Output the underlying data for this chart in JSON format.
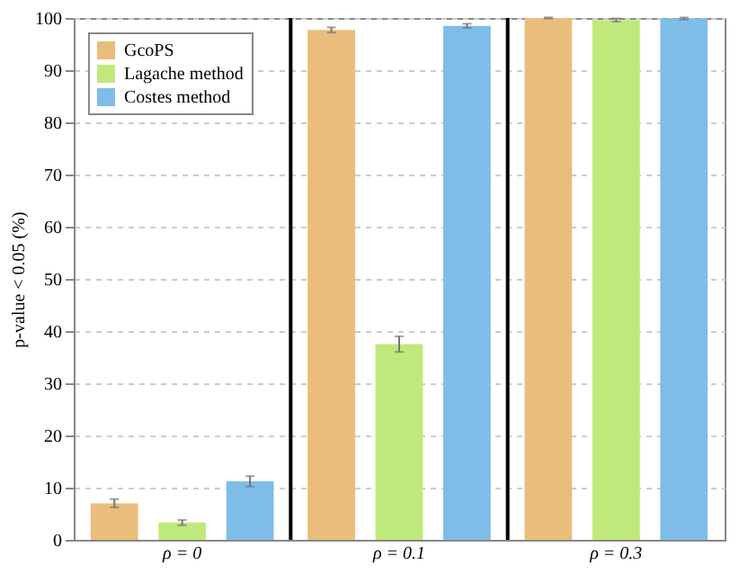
{
  "chart_data": {
    "type": "bar",
    "ylabel": "p-value < 0.05 (%)",
    "categories": [
      "ρ = 0",
      "ρ = 0.1",
      "ρ = 0.3"
    ],
    "series": [
      {
        "name": "GcoPS",
        "color": "#eabd7c",
        "values": [
          7.0,
          97.7,
          100
        ],
        "errors": [
          0.8,
          0.5,
          0.1
        ]
      },
      {
        "name": "Lagache method",
        "color": "#c0e97c",
        "values": [
          3.3,
          37.5,
          99.6
        ],
        "errors": [
          0.5,
          1.5,
          0.3
        ]
      },
      {
        "name": "Costes method",
        "color": "#7fbde9",
        "values": [
          11.2,
          98.5,
          99.9
        ],
        "errors": [
          1.0,
          0.4,
          0.2
        ]
      }
    ],
    "ylim": [
      0,
      100
    ],
    "yticks": [
      0,
      10,
      20,
      30,
      40,
      50,
      60,
      70,
      80,
      90,
      100
    ],
    "grid": "y",
    "legend": "top left"
  }
}
